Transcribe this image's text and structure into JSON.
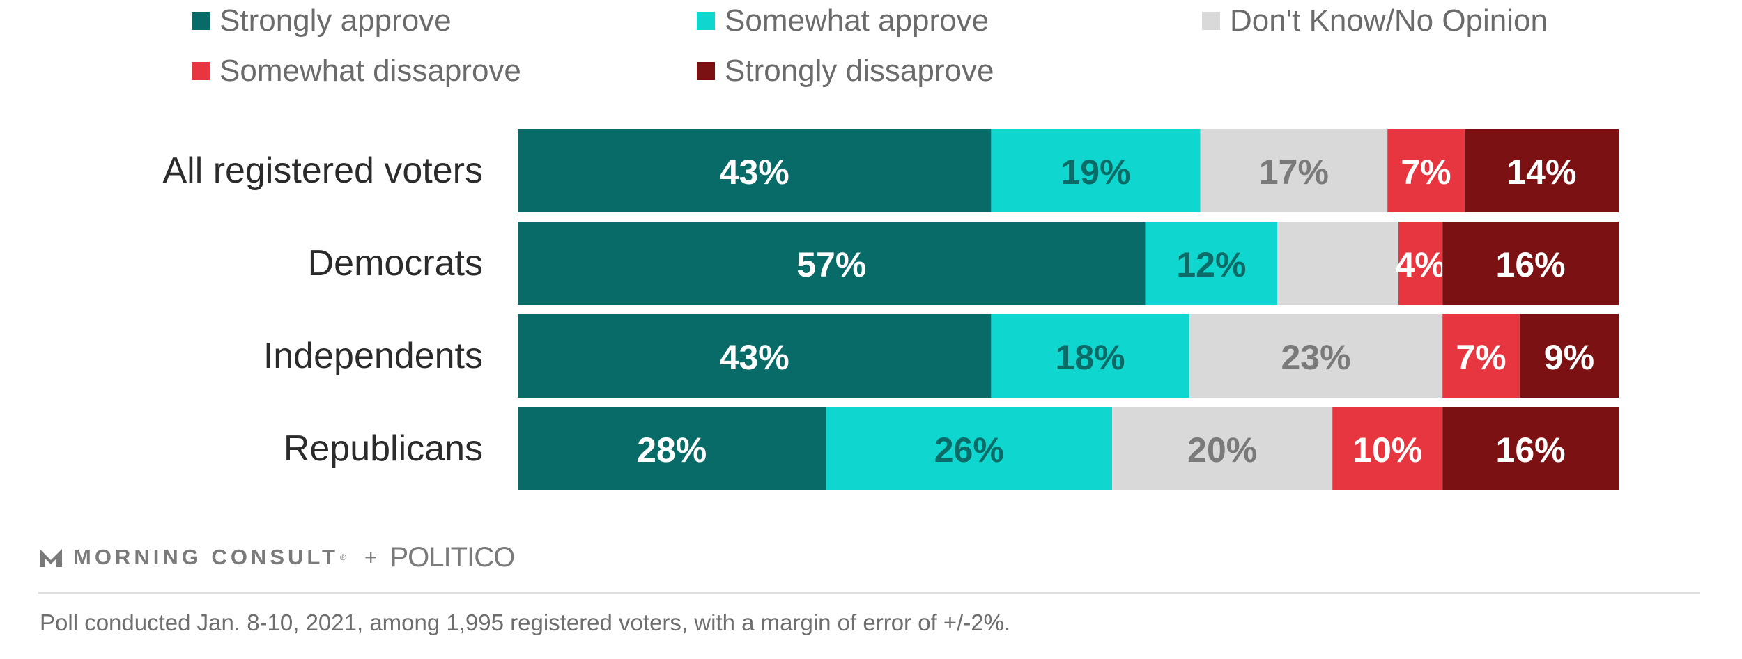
{
  "legend": [
    {
      "label": "Strongly approve",
      "color": "#096b67"
    },
    {
      "label": "Somewhat approve",
      "color": "#0fd7cf"
    },
    {
      "label": "Don't Know/No Opinion",
      "color": "#d9d9d9"
    },
    {
      "label": "Somewhat dissaprove",
      "color": "#e7363f"
    },
    {
      "label": "Strongly dissaprove",
      "color": "#7c1113"
    }
  ],
  "chart_data": {
    "type": "bar",
    "orientation": "horizontal",
    "stacked": true,
    "title": "",
    "xlabel": "",
    "ylabel": "",
    "xlim": [
      0,
      100
    ],
    "grid": false,
    "legend_position": "top",
    "categories": [
      "All registered voters",
      "Democrats",
      "Independents",
      "Republicans"
    ],
    "series": [
      {
        "name": "Strongly approve",
        "color": "#096b67",
        "label_color": "#ffffff",
        "values": [
          43,
          57,
          43,
          28
        ],
        "labels": [
          "43%",
          "57%",
          "43%",
          "28%"
        ]
      },
      {
        "name": "Somewhat approve",
        "color": "#0fd7cf",
        "label_color": "#0b6b67",
        "values": [
          19,
          12,
          18,
          26
        ],
        "labels": [
          "19%",
          "12%",
          "18%",
          "26%"
        ]
      },
      {
        "name": "Don't Know/No Opinion",
        "color": "#d9d9d9",
        "label_color": "#7a7a7a",
        "values": [
          17,
          11,
          23,
          20
        ],
        "labels": [
          "17%",
          "",
          "23%",
          "20%"
        ]
      },
      {
        "name": "Somewhat dissaprove",
        "color": "#e7363f",
        "label_color": "#ffffff",
        "values": [
          7,
          4,
          7,
          10
        ],
        "labels": [
          "7%",
          "4%",
          "7%",
          "10%"
        ]
      },
      {
        "name": "Strongly dissaprove",
        "color": "#7c1113",
        "label_color": "#ffffff",
        "values": [
          14,
          16,
          9,
          16
        ],
        "labels": [
          "14%",
          "16%",
          "9%",
          "16%"
        ]
      }
    ]
  },
  "brand": {
    "morning_consult": "MORNING CONSULT",
    "registered_mark": "®",
    "plus": "+",
    "politico": "POLITICO"
  },
  "footnote": "Poll conducted Jan. 8-10, 2021, among 1,995 registered voters, with a margin of error of +/-2%."
}
